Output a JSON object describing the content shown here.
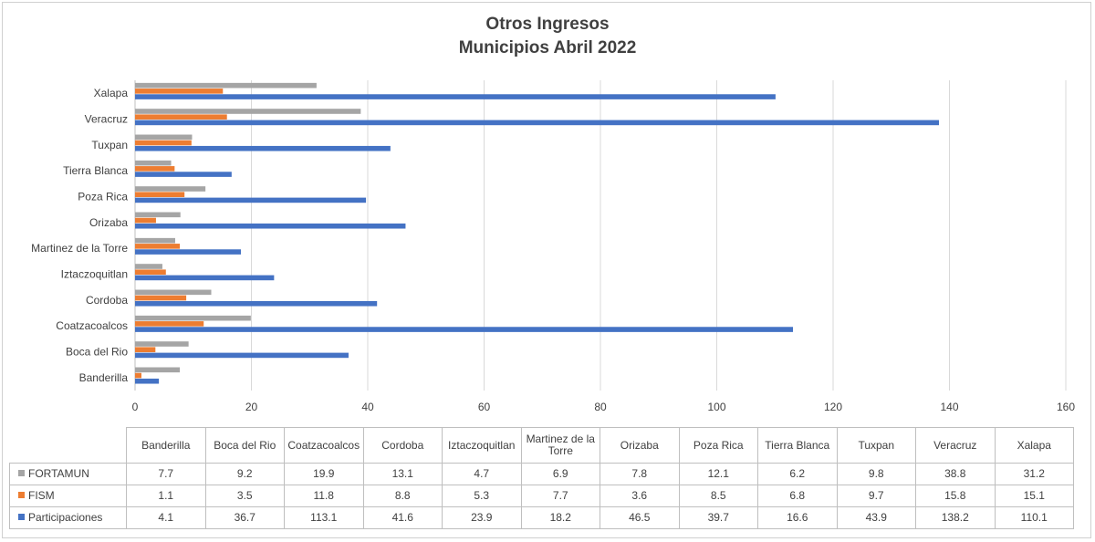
{
  "chart_data": {
    "type": "bar",
    "orientation": "horizontal",
    "title": [
      "Otros Ingresos",
      "Municipios Abril 2022"
    ],
    "categories": [
      "Banderilla",
      "Boca del Rio",
      "Coatzacoalcos",
      "Cordoba",
      "Iztaczoquitlan",
      "Martinez de la Torre",
      "Orizaba",
      "Poza Rica",
      "Tierra Blanca",
      "Tuxpan",
      "Veracruz",
      "Xalapa"
    ],
    "series": [
      {
        "name": "FORTAMUN",
        "color": "#a5a5a5",
        "values": [
          7.7,
          9.2,
          19.9,
          13.1,
          4.7,
          6.9,
          7.8,
          12.1,
          6.2,
          9.8,
          38.8,
          31.2
        ]
      },
      {
        "name": "FISM",
        "color": "#ed7d31",
        "values": [
          1.1,
          3.5,
          11.8,
          8.8,
          5.3,
          7.7,
          3.6,
          8.5,
          6.8,
          9.7,
          15.8,
          15.1
        ]
      },
      {
        "name": "Participaciones",
        "color": "#4472c4",
        "values": [
          4.1,
          36.7,
          113.1,
          41.6,
          23.9,
          18.2,
          46.5,
          39.7,
          16.6,
          43.9,
          138.2,
          110.1
        ]
      }
    ],
    "xlim": [
      0,
      160
    ],
    "x_ticks": [
      0,
      20,
      40,
      60,
      80,
      100,
      120,
      140,
      160
    ],
    "grid": true,
    "legend": "data-table",
    "chart_axis_labels": [
      "Banderilla",
      "Boca del Rio",
      "Coatzacoalcos",
      "Cordoba",
      "Iztaczoquitlan",
      "Martinez de la Torre",
      "Orizaba",
      "Poza Rica",
      "Tierra Blanca ",
      "Tuxpan",
      "Veracruz",
      "Xalapa"
    ],
    "table_headers": [
      "Banderilla",
      "Boca del Rio",
      "Coatzacoalcos",
      "Cordoba",
      "Iztaczoquitlan",
      "Martinez de la Torre",
      "Orizaba",
      "Poza Rica",
      "Tierra Blanca",
      "Tuxpan",
      "Veracruz",
      "Xalapa"
    ]
  }
}
